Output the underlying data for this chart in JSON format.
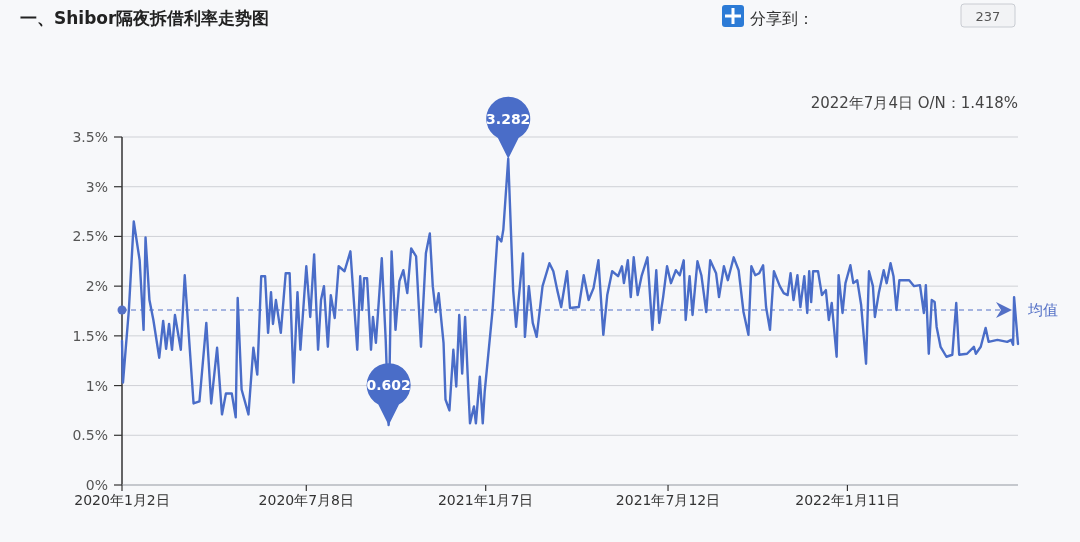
{
  "chart_data": {
    "type": "line",
    "title": "一、Shibor隔夜拆借利率走势图",
    "color": "#4a6dc8",
    "x": [
      "2020-01-02",
      "2020-01-03",
      "2020-01-09",
      "2020-01-14",
      "2020-01-20",
      "2020-01-24",
      "2020-01-26",
      "2020-01-30",
      "2020-02-03",
      "2020-02-09",
      "2020-02-13",
      "2020-02-16",
      "2020-02-19",
      "2020-02-22",
      "2020-02-25",
      "2020-03-02",
      "2020-03-06",
      "2020-03-10",
      "2020-03-15",
      "2020-03-21",
      "2020-03-28",
      "2020-04-02",
      "2020-04-08",
      "2020-04-13",
      "2020-04-17",
      "2020-04-23",
      "2020-04-27",
      "2020-04-29",
      "2020-05-03",
      "2020-05-10",
      "2020-05-15",
      "2020-05-19",
      "2020-05-23",
      "2020-05-27",
      "2020-05-30",
      "2020-06-02",
      "2020-06-04",
      "2020-06-07",
      "2020-06-12",
      "2020-06-17",
      "2020-06-21",
      "2020-06-25",
      "2020-06-29",
      "2020-07-02",
      "2020-07-08",
      "2020-07-12",
      "2020-07-16",
      "2020-07-20",
      "2020-07-23",
      "2020-07-26",
      "2020-07-30",
      "2020-08-02",
      "2020-08-06",
      "2020-08-10",
      "2020-08-16",
      "2020-08-22",
      "2020-08-29",
      "2020-09-01",
      "2020-09-03",
      "2020-09-05",
      "2020-09-08",
      "2020-09-12",
      "2020-09-14",
      "2020-09-17",
      "2020-09-23",
      "2020-09-27",
      "2020-09-30",
      "2020-10-03",
      "2020-10-07",
      "2020-10-11",
      "2020-10-15",
      "2020-10-19",
      "2020-10-23",
      "2020-10-28",
      "2020-11-02",
      "2020-11-07",
      "2020-11-11",
      "2020-11-14",
      "2020-11-17",
      "2020-11-20",
      "2020-11-25",
      "2020-11-27",
      "2020-12-01",
      "2020-12-05",
      "2020-12-08",
      "2020-12-11",
      "2020-12-14",
      "2020-12-17",
      "2020-12-20",
      "2020-12-22",
      "2020-12-26",
      "2020-12-28",
      "2021-01-01",
      "2021-01-04",
      "2021-01-06",
      "2021-01-14",
      "2021-01-19",
      "2021-01-23",
      "2021-01-25",
      "2021-01-30",
      "2021-02-04",
      "2021-02-07",
      "2021-02-14",
      "2021-02-16",
      "2021-02-20",
      "2021-02-24",
      "2021-02-28",
      "2021-03-06",
      "2021-03-13",
      "2021-03-17",
      "2021-03-21",
      "2021-03-25",
      "2021-03-31",
      "2021-04-03",
      "2021-04-12",
      "2021-04-17",
      "2021-04-22",
      "2021-04-27",
      "2021-05-02",
      "2021-05-07",
      "2021-05-11",
      "2021-05-16",
      "2021-05-22",
      "2021-05-26",
      "2021-05-28",
      "2021-06-01",
      "2021-06-04",
      "2021-06-07",
      "2021-06-11",
      "2021-06-15",
      "2021-06-21",
      "2021-06-26",
      "2021-06-30",
      "2021-07-03",
      "2021-07-07",
      "2021-07-11",
      "2021-07-15",
      "2021-07-20",
      "2021-07-24",
      "2021-07-28",
      "2021-07-30",
      "2021-08-03",
      "2021-08-06",
      "2021-08-11",
      "2021-08-15",
      "2021-08-20",
      "2021-08-24",
      "2021-08-30",
      "2021-09-02",
      "2021-09-07",
      "2021-09-11",
      "2021-09-17",
      "2021-09-22",
      "2021-09-27",
      "2021-10-02",
      "2021-10-05",
      "2021-10-09",
      "2021-10-13",
      "2021-10-17",
      "2021-10-20",
      "2021-10-24",
      "2021-10-28",
      "2021-11-03",
      "2021-11-07",
      "2021-11-11",
      "2021-11-14",
      "2021-11-17",
      "2021-11-21",
      "2021-11-24",
      "2021-11-28",
      "2021-12-01",
      "2021-12-03",
      "2021-12-05",
      "2021-12-07",
      "2021-12-12",
      "2021-12-16",
      "2021-12-20",
      "2021-12-23",
      "2021-12-26",
      "2021-12-31",
      "2022-01-02",
      "2022-01-06",
      "2022-01-09",
      "2022-01-14",
      "2022-01-17",
      "2022-01-21",
      "2022-01-25",
      "2022-01-30",
      "2022-02-02",
      "2022-02-06",
      "2022-02-08",
      "2022-02-12",
      "2022-02-17",
      "2022-02-20",
      "2022-02-24",
      "2022-02-27",
      "2022-03-02",
      "2022-03-05",
      "2022-03-11",
      "2022-03-15",
      "2022-03-20",
      "2022-03-26",
      "2022-03-30",
      "2022-04-01",
      "2022-04-04",
      "2022-04-07",
      "2022-04-10",
      "2022-04-12",
      "2022-04-16",
      "2022-04-22",
      "2022-04-28",
      "2022-05-02",
      "2022-05-05",
      "2022-05-13",
      "2022-05-20",
      "2022-05-22",
      "2022-05-27",
      "2022-06-01",
      "2022-06-04",
      "2022-06-13",
      "2022-06-23",
      "2022-06-27",
      "2022-06-29",
      "2022-06-30",
      "2022-07-04"
    ],
    "values": [
      1.45,
      1.03,
      1.76,
      2.65,
      2.26,
      1.56,
      2.49,
      1.86,
      1.66,
      1.28,
      1.65,
      1.37,
      1.62,
      1.36,
      1.71,
      1.36,
      2.11,
      1.53,
      0.82,
      0.84,
      1.63,
      0.82,
      1.38,
      0.71,
      0.92,
      0.92,
      0.68,
      1.88,
      0.96,
      0.71,
      1.38,
      1.11,
      2.1,
      2.1,
      1.53,
      1.94,
      1.62,
      1.86,
      1.53,
      2.13,
      2.13,
      1.03,
      1.94,
      1.36,
      2.2,
      1.69,
      2.32,
      1.36,
      1.86,
      2.0,
      1.39,
      1.91,
      1.68,
      2.2,
      2.15,
      2.35,
      1.36,
      2.1,
      1.76,
      2.08,
      2.08,
      1.36,
      1.69,
      1.43,
      2.28,
      1.46,
      0.602,
      2.35,
      1.56,
      2.05,
      2.16,
      1.93,
      2.38,
      2.3,
      1.39,
      2.33,
      2.53,
      2.0,
      1.74,
      1.93,
      1.43,
      0.86,
      0.75,
      1.36,
      0.99,
      1.71,
      1.12,
      1.69,
      1.02,
      0.62,
      0.79,
      0.62,
      1.09,
      0.62,
      0.94,
      1.76,
      2.5,
      2.45,
      2.57,
      3.282,
      1.96,
      1.59,
      2.33,
      1.49,
      2.0,
      1.63,
      1.49,
      2.0,
      2.23,
      2.15,
      1.96,
      1.79,
      2.15,
      1.78,
      1.79,
      2.11,
      1.86,
      1.98,
      2.26,
      1.51,
      1.91,
      2.15,
      2.1,
      2.2,
      2.03,
      2.26,
      1.89,
      2.29,
      1.91,
      2.1,
      2.29,
      1.56,
      2.16,
      1.63,
      1.89,
      2.2,
      2.03,
      2.16,
      2.11,
      2.26,
      1.66,
      2.1,
      1.71,
      2.25,
      2.11,
      1.74,
      2.26,
      2.13,
      1.89,
      2.2,
      2.06,
      2.29,
      2.16,
      1.74,
      1.51,
      2.2,
      2.11,
      2.13,
      2.21,
      1.79,
      1.56,
      2.15,
      2.0,
      1.93,
      1.91,
      2.13,
      1.86,
      2.11,
      1.79,
      2.1,
      1.73,
      2.15,
      1.84,
      2.15,
      2.15,
      1.91,
      1.96,
      1.66,
      1.83,
      1.29,
      2.11,
      1.73,
      2.03,
      2.21,
      2.03,
      2.06,
      1.81,
      1.22,
      2.15,
      2.0,
      1.69,
      1.93,
      2.16,
      2.03,
      2.23,
      2.1,
      1.76,
      2.06,
      2.06,
      2.06,
      2.0,
      2.01,
      1.73,
      2.01,
      1.32,
      1.86,
      1.84,
      1.59,
      1.39,
      1.29,
      1.31,
      1.83,
      1.31,
      1.32,
      1.39,
      1.32,
      1.39,
      1.58,
      1.44,
      1.46,
      1.44,
      1.46,
      1.41,
      1.89,
      1.418
    ],
    "xlim": [
      "2020-01-02",
      "2022-07-04"
    ],
    "xticks": [
      {
        "value": "2020-01-02",
        "label": "2020年1月2日"
      },
      {
        "value": "2020-07-08",
        "label": "2020年7月8日"
      },
      {
        "value": "2021-01-07",
        "label": "2021年1月7日"
      },
      {
        "value": "2021-07-12",
        "label": "2021年7月12日"
      },
      {
        "value": "2022-01-11",
        "label": "2022年1月11日"
      }
    ],
    "ylim": [
      0,
      3.5
    ],
    "yticks": [
      {
        "value": 0,
        "label": "0%"
      },
      {
        "value": 0.5,
        "label": "0.5%"
      },
      {
        "value": 1,
        "label": "1%"
      },
      {
        "value": 1.5,
        "label": "1.5%"
      },
      {
        "value": 2,
        "label": "2%"
      },
      {
        "value": 2.5,
        "label": "2.5%"
      },
      {
        "value": 3,
        "label": "3%"
      },
      {
        "value": 3.5,
        "label": "3.5%"
      }
    ],
    "grid": "y",
    "ref_lines": [
      {
        "axis": "y",
        "value": 1.76,
        "label": "均值",
        "line_style": "dashed",
        "color": "#5470c6"
      }
    ],
    "annotations": [
      {
        "text": "3.282",
        "x": "2021-01-30",
        "y": 3.282
      },
      {
        "text": "0.602",
        "x": "2020-09-30",
        "y": 0.602
      },
      "2022年7月4日   O/N：1.418%",
      "分享到：",
      "237"
    ]
  }
}
